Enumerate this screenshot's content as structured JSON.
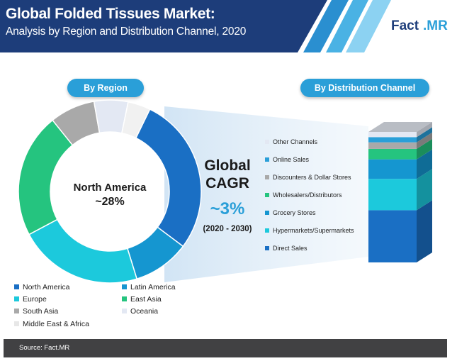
{
  "header": {
    "title": "Global Folded Tissues Market:",
    "subtitle": "Analysis by Region and Distribution Channel, 2020",
    "logo_part1": "Fact",
    "logo_part2": ".MR"
  },
  "labels": {
    "by_region": "By Region",
    "by_channel": "By Distribution Channel",
    "cagr_line1": "Global",
    "cagr_line2": "CAGR",
    "cagr_value": "~3%",
    "cagr_period": "(2020 - 2030)",
    "center_name": "North America",
    "center_value": "~28%"
  },
  "colors": {
    "header_bar": "#1d3d7a",
    "accent": "#2a9fd8",
    "footer": "#414143"
  },
  "chart_data": [
    {
      "type": "pie",
      "subtype": "donut",
      "title": "By Region",
      "slices": [
        {
          "name": "North America",
          "value": 28,
          "color": "#1a6fc4",
          "label": "~28%"
        },
        {
          "name": "Latin America",
          "value": 10,
          "color": "#1596d0",
          "label": ""
        },
        {
          "name": "Europe",
          "value": 22,
          "color": "#1cc9dc",
          "label": ""
        },
        {
          "name": "East Asia",
          "value": 22,
          "color": "#25c47f",
          "label": ""
        },
        {
          "name": "South Asia",
          "value": 8,
          "color": "#a9a9a9",
          "label": ""
        },
        {
          "name": "Oceania",
          "value": 6,
          "color": "#e3e8f3",
          "label": ""
        },
        {
          "name": "Middle East & Africa",
          "value": 4,
          "color": "#f1f1f1",
          "label": ""
        }
      ],
      "legend_position": "bottom"
    },
    {
      "type": "bar",
      "subtype": "stacked-100",
      "title": "By Distribution Channel",
      "categories": [
        "2020"
      ],
      "series": [
        {
          "name": "Direct Sales",
          "values": [
            40
          ],
          "color": "#1a6fc4"
        },
        {
          "name": "Hypermarkets/Supermarkets",
          "values": [
            24
          ],
          "color": "#1cc9dc"
        },
        {
          "name": "Grocery Stores",
          "values": [
            15
          ],
          "color": "#1596d0"
        },
        {
          "name": "Wholesalers/Distributors",
          "values": [
            8
          ],
          "color": "#25c47f"
        },
        {
          "name": "Discounters & Dollar Stores",
          "values": [
            5
          ],
          "color": "#a9a9a9"
        },
        {
          "name": "Online Sales",
          "values": [
            4
          ],
          "color": "#2a9fd8"
        },
        {
          "name": "Other Channels",
          "values": [
            4
          ],
          "color": "#e3e8f3"
        }
      ],
      "legend_order": [
        "Other Channels",
        "Online Sales",
        "Discounters & Dollar Stores",
        "Wholesalers/Distributors",
        "Grocery Stores",
        "Hypermarkets/Supermarkets",
        "Direct Sales"
      ],
      "legend_position": "left"
    }
  ],
  "footer": {
    "source": "Source: Fact.MR"
  }
}
